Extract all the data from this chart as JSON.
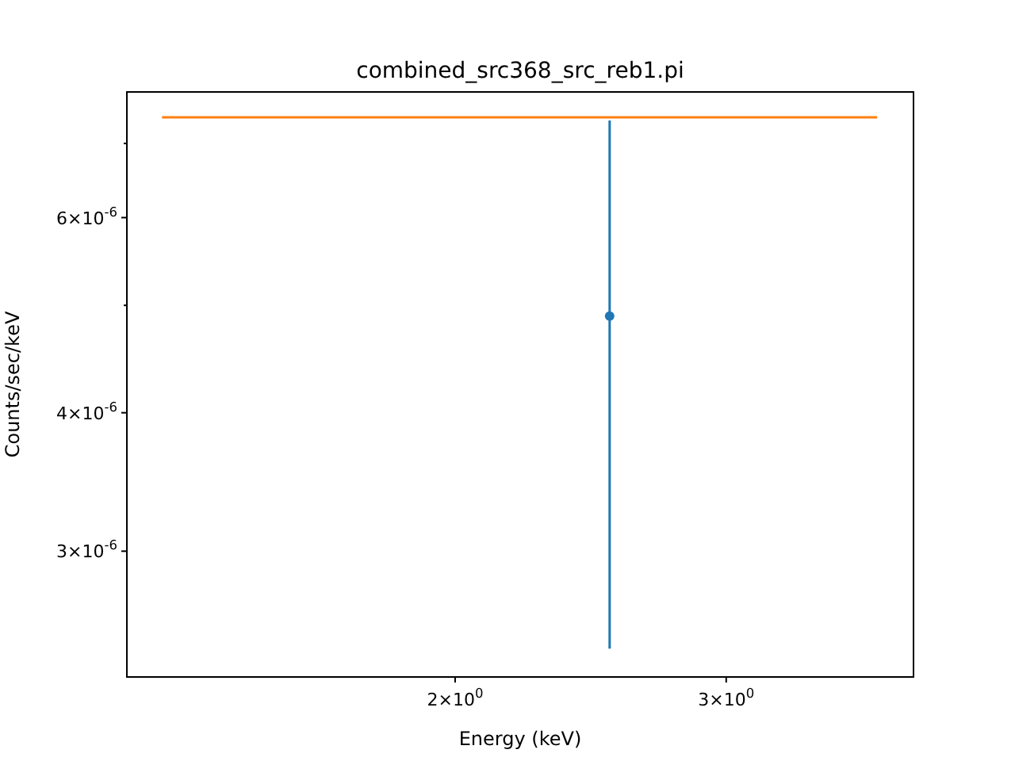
{
  "chart_data": {
    "type": "scatter",
    "title": "combined_src368_src_reb1.pi",
    "xlabel": "Energy (keV)",
    "ylabel": "Counts/sec/keV",
    "log": "xy",
    "grid": false,
    "xlim": [
      1.224,
      3.97
    ],
    "ylim": [
      2.31e-06,
      7.79e-06
    ],
    "xticks": [
      {
        "value": 2,
        "label": "2×10$^{0}$"
      },
      {
        "value": 3,
        "label": "3×10$^{0}$"
      }
    ],
    "yticks": [
      {
        "value": 3e-06,
        "label": "3×10$^{-6}$"
      },
      {
        "value": 4e-06,
        "label": "4×10$^{-6}$"
      },
      {
        "value": 5e-06,
        "label": null
      },
      {
        "value": 6e-06,
        "label": "6×10$^{-6}$"
      },
      {
        "value": 7e-06,
        "label": null
      }
    ],
    "series": [
      {
        "color": "#1f77b4",
        "marker": "circle",
        "x": [
          2.52
        ],
        "values": [
          4.89e-06
        ],
        "errors": [
          [
            2.45e-06,
            7.34e-06
          ]
        ]
      },
      {
        "type": "line",
        "marker": "none",
        "color": "#ff7f0e",
        "x": [
          1.29,
          3.76
        ],
        "values": [
          7.39e-06,
          7.39e-06
        ]
      }
    ]
  }
}
